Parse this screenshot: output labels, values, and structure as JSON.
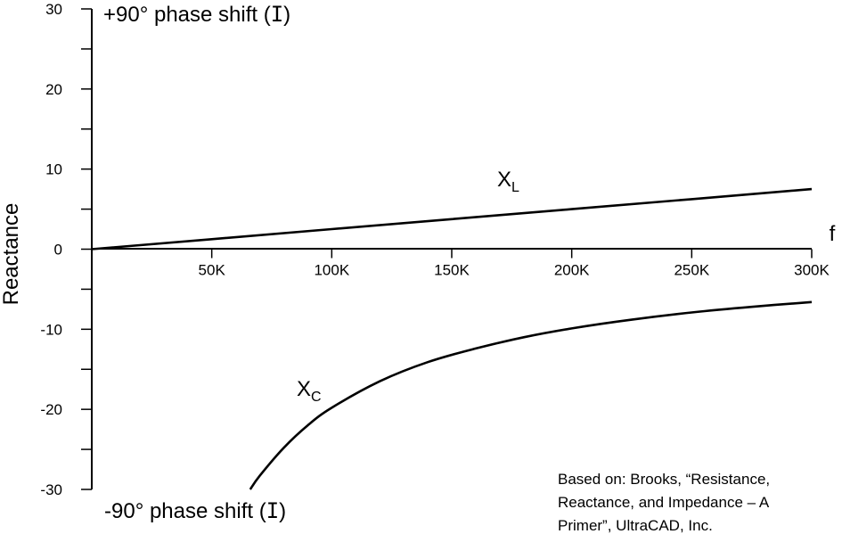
{
  "chart_data": {
    "type": "line",
    "title": "",
    "xlabel": "f",
    "ylabel": "Reactance",
    "xlim": [
      0,
      300000
    ],
    "ylim": [
      -30,
      30
    ],
    "x_ticks": [
      50000,
      100000,
      150000,
      200000,
      250000,
      300000
    ],
    "x_tick_labels": [
      "50K",
      "100K",
      "150K",
      "200K",
      "250K",
      "300K"
    ],
    "y_ticks": [
      -30,
      -20,
      -10,
      0,
      10,
      20,
      30
    ],
    "y_tick_labels": [
      "-30",
      "-20",
      "-10",
      "0",
      "10",
      "20",
      "30"
    ],
    "y_minor_step": 5,
    "grid": false,
    "legend": "none",
    "series": [
      {
        "label": "X",
        "subscript": "L",
        "x": [
          0,
          50000,
          100000,
          150000,
          200000,
          250000,
          300000
        ],
        "y": [
          0,
          1.25,
          2.5,
          3.75,
          5.0,
          6.25,
          7.5
        ]
      },
      {
        "label": "X",
        "subscript": "C",
        "x": [
          66000,
          70000,
          80000,
          90000,
          100000,
          120000,
          140000,
          160000,
          180000,
          200000,
          225000,
          250000,
          275000,
          300000
        ],
        "y": [
          -30,
          -28.3,
          -24.8,
          -22.0,
          -19.8,
          -16.5,
          -14.1,
          -12.4,
          -11.0,
          -9.9,
          -8.8,
          -7.9,
          -7.2,
          -6.6
        ]
      }
    ],
    "annotations": {
      "top": "+90° phase shift (",
      "bottom": "-90° phase shift (",
      "close_paren": ")",
      "current_symbol": "I",
      "credit": [
        "Based on: Brooks, “Resistance,",
        "Reactance, and Impedance – A",
        "Primer”, UltraCAD, Inc."
      ]
    }
  }
}
